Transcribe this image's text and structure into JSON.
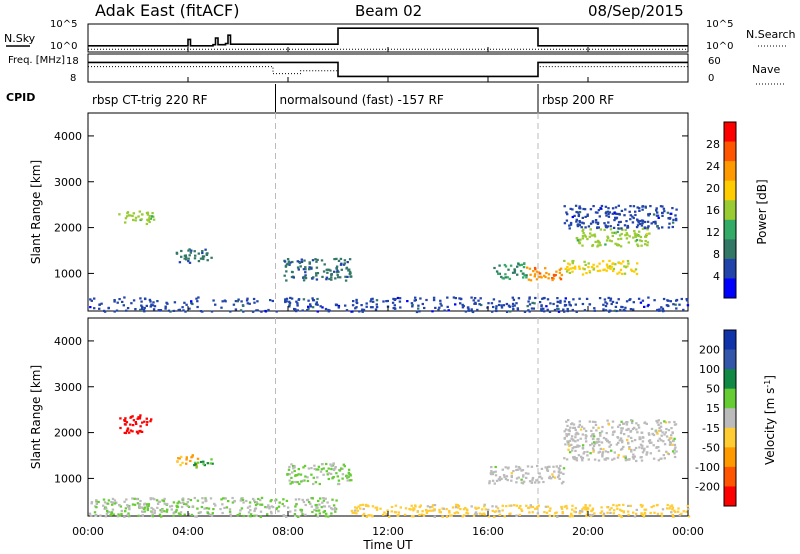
{
  "header": {
    "station": "Adak East (fitACF)",
    "beam": "Beam 02",
    "date": "08/Sep/2015"
  },
  "chart_data": [
    {
      "type": "line",
      "title": "",
      "left_label": "N.Sky",
      "right_label": "N.Search",
      "left_ticks": [
        "10^5",
        "10^0"
      ],
      "right_ticks": [
        "10^5",
        "10^0"
      ],
      "series": [
        {
          "name": "N.Sky",
          "x_hours": [
            0.0,
            3.9,
            4.0,
            4.1,
            5.0,
            5.1,
            5.2,
            5.5,
            5.6,
            5.7,
            10.0,
            18.0,
            24.0
          ],
          "level": [
            0.22,
            0.22,
            0.45,
            0.22,
            0.26,
            0.5,
            0.26,
            0.3,
            0.6,
            0.28,
            0.85,
            0.22,
            0.22
          ]
        },
        {
          "name": "N.Search",
          "x_hours": [
            0,
            24
          ],
          "level": [
            0.1,
            0.1
          ]
        }
      ]
    },
    {
      "type": "line",
      "left_label": "Freq. [MHz]",
      "right_label": "Nave",
      "left_ticks": [
        "18",
        "8"
      ],
      "right_ticks": [
        "60",
        "0"
      ],
      "series": [
        {
          "name": "Freq.",
          "x_hours": [
            0,
            10,
            10,
            18,
            18,
            24
          ],
          "level": [
            0.7,
            0.7,
            0.2,
            0.2,
            0.7,
            0.7
          ]
        },
        {
          "name": "Nave",
          "x_hours": [
            0,
            6.8,
            7.4,
            8.5,
            10,
            18,
            24
          ],
          "level": [
            0.55,
            0.55,
            0.3,
            0.4,
            0.2,
            0.55,
            0.55
          ]
        }
      ]
    },
    {
      "type": "heatmap",
      "ylabel": "Slant Range [km]",
      "colorbar_label": "Power [dB]",
      "colorbar_ticks": [
        "28",
        "24",
        "20",
        "16",
        "12",
        "8",
        "4"
      ],
      "colorbar_colors": [
        "#ff0000",
        "#ff5500",
        "#ff9900",
        "#ffcc00",
        "#99cc33",
        "#33aa66",
        "#337766",
        "#2244aa",
        "#0000ff"
      ],
      "ylim": [
        180,
        4500
      ],
      "y_ticks": [
        "4000",
        "3000",
        "2000",
        "1000"
      ],
      "patches": [
        {
          "x": [
            1.2,
            2.6
          ],
          "y": [
            2100,
            2400
          ],
          "value": 16
        },
        {
          "x": [
            3.5,
            5.0
          ],
          "y": [
            1250,
            1550
          ],
          "value": 10
        },
        {
          "x": [
            7.8,
            10.5
          ],
          "y": [
            850,
            1350
          ],
          "value": 10
        },
        {
          "x": [
            16.2,
            17.5
          ],
          "y": [
            900,
            1250
          ],
          "value": 12
        },
        {
          "x": [
            17.5,
            19.0
          ],
          "y": [
            850,
            1150
          ],
          "value": 22
        },
        {
          "x": [
            19.0,
            22.0
          ],
          "y": [
            1000,
            1300
          ],
          "value": 18
        },
        {
          "x": [
            19.5,
            22.5
          ],
          "y": [
            1600,
            2000
          ],
          "value": 16
        },
        {
          "x": [
            19.0,
            23.5
          ],
          "y": [
            2000,
            2500
          ],
          "value": 8
        },
        {
          "x": [
            0.0,
            24.0
          ],
          "y": [
            180,
            500
          ],
          "value": 8
        }
      ]
    },
    {
      "type": "heatmap",
      "ylabel": "Slant Range [km]",
      "colorbar_label": "Velocity [m s^-1]",
      "colorbar_ticks": [
        "200",
        "100",
        "50",
        "15",
        "-15",
        "-50",
        "-100",
        "-200"
      ],
      "colorbar_colors": [
        "#1133aa",
        "#3355aa",
        "#118844",
        "#66cc33",
        "#bbbbbb",
        "#ffcc33",
        "#ff9900",
        "#ff5500",
        "#ff0000"
      ],
      "ylim": [
        180,
        4500
      ],
      "y_ticks": [
        "4000",
        "3000",
        "2000",
        "1000"
      ],
      "patches": [
        {
          "x": [
            1.2,
            2.6
          ],
          "y": [
            2000,
            2400
          ],
          "value": -200
        },
        {
          "x": [
            3.5,
            4.4
          ],
          "y": [
            1300,
            1550
          ],
          "value": -80
        },
        {
          "x": [
            4.2,
            5.0
          ],
          "y": [
            1250,
            1450
          ],
          "value": 60
        },
        {
          "x": [
            7.8,
            10.5
          ],
          "y": [
            900,
            1350
          ],
          "value": 30
        },
        {
          "x": [
            10.5,
            24.0
          ],
          "y": [
            180,
            450
          ],
          "value": -40
        },
        {
          "x": [
            16.0,
            19.0
          ],
          "y": [
            900,
            1300
          ],
          "value": 0
        },
        {
          "x": [
            19.0,
            23.5
          ],
          "y": [
            1400,
            2300
          ],
          "value": 0
        },
        {
          "x": [
            0.0,
            10.0
          ],
          "y": [
            180,
            600
          ],
          "value": 20
        }
      ]
    }
  ],
  "cpid": {
    "label": "CPID",
    "segments": [
      {
        "start": 0.0,
        "end": 7.5,
        "label": "rbsp CT-trig 220 RF"
      },
      {
        "start": 7.5,
        "end": 18.0,
        "label": "normalsound (fast) -157 RF"
      },
      {
        "start": 18.0,
        "end": 24.0,
        "label": "rbsp 200 RF"
      }
    ]
  },
  "xaxis": {
    "label": "Time UT",
    "ticks": [
      "00:00",
      "04:00",
      "08:00",
      "12:00",
      "16:00",
      "20:00",
      "00:00"
    ],
    "tick_hours": [
      0,
      4,
      8,
      12,
      16,
      20,
      24
    ]
  }
}
